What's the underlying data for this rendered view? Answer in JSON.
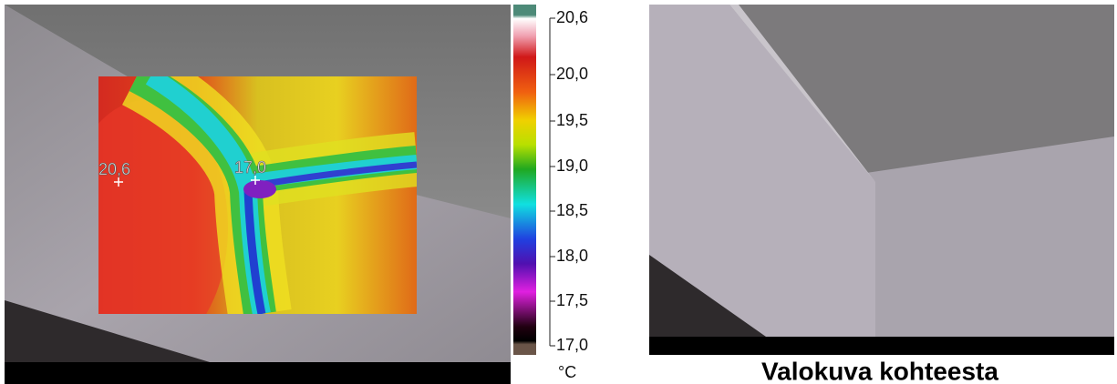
{
  "thermal_image": {
    "spots": [
      {
        "label": "20,6"
      },
      {
        "label": "17,0"
      }
    ]
  },
  "scale": {
    "ticks": [
      "20,6",
      "20,0",
      "19,5",
      "19,0",
      "18,5",
      "18,0",
      "17,5",
      "17,0"
    ],
    "unit": "°C"
  },
  "photo": {
    "caption": "Valokuva kohteesta"
  }
}
